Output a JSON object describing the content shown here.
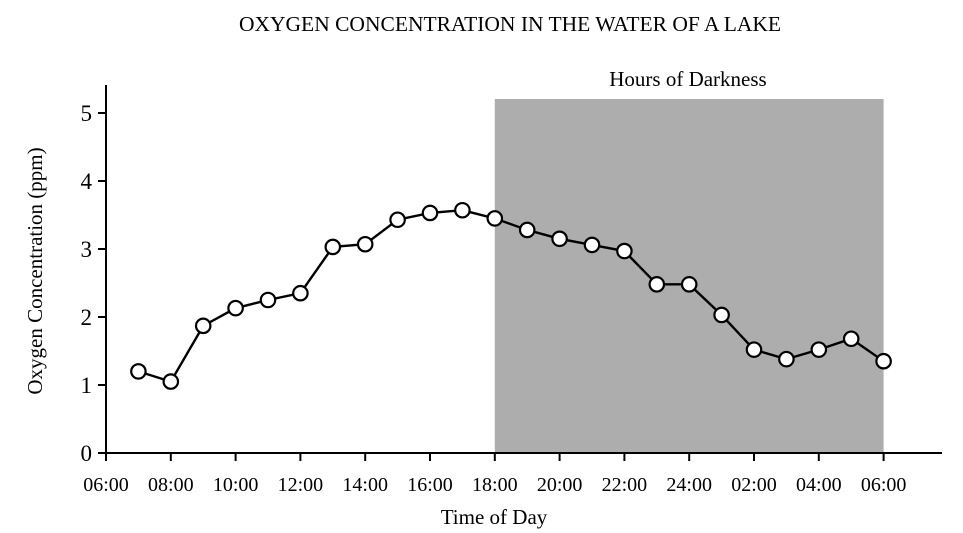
{
  "chart_data": {
    "type": "line",
    "title": "OXYGEN CONCENTRATION IN THE WATER OF A LAKE",
    "xlabel": "Time of Day",
    "ylabel": "Oxygen Concentration (ppm)",
    "x_ticks": [
      "06:00",
      "08:00",
      "10:00",
      "12:00",
      "14:00",
      "16:00",
      "18:00",
      "20:00",
      "22:00",
      "24:00",
      "02:00",
      "04:00",
      "06:00"
    ],
    "ylim": [
      0,
      5.2
    ],
    "y_ticks": [
      "0",
      "1",
      "2",
      "3",
      "4",
      "5"
    ],
    "shaded_region": {
      "label": "Hours of Darkness",
      "from": "18:00",
      "to": "06:00",
      "color": "#adadad"
    },
    "grid": false,
    "x": [
      "07:00",
      "08:00",
      "09:00",
      "10:00",
      "11:00",
      "12:00",
      "13:00",
      "14:00",
      "15:00",
      "16:00",
      "17:00",
      "18:00",
      "19:00",
      "20:00",
      "21:00",
      "22:00",
      "23:00",
      "24:00",
      "01:00",
      "02:00",
      "03:00",
      "04:00",
      "05:00",
      "06:00"
    ],
    "values": [
      1.2,
      1.05,
      1.87,
      2.13,
      2.25,
      2.35,
      3.03,
      3.07,
      3.43,
      3.53,
      3.57,
      3.45,
      3.28,
      3.15,
      3.06,
      2.97,
      2.48,
      2.48,
      2.03,
      1.52,
      1.38,
      1.52,
      1.68,
      1.35
    ]
  }
}
